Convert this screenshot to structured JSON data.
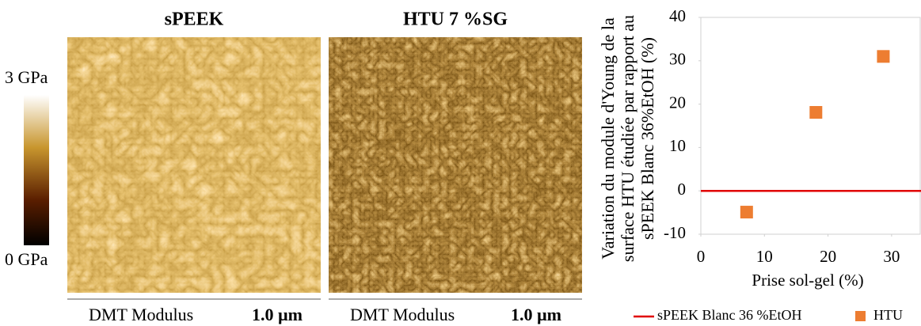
{
  "panels": [
    {
      "title": "sPEEK",
      "caption": "DMT Modulus",
      "scale": "1.0 µm"
    },
    {
      "title": "HTU 7 %SG",
      "caption": "DMT Modulus",
      "scale": "1.0 µm"
    }
  ],
  "colorbar": {
    "top": "3 GPa",
    "bottom": "0 GPa"
  },
  "chart_data": {
    "type": "scatter",
    "y_label": [
      "Variation du module d'Young de la",
      "surface HTU étudiée par rapport au",
      "sPEEK Blanc 36%EtOH (%)"
    ],
    "x_label": "Prise sol-gel (%)",
    "xlim": [
      0,
      35
    ],
    "xticks": [
      0,
      10,
      20,
      30
    ],
    "ylim": [
      -10,
      40
    ],
    "yticks": [
      -10,
      0,
      10,
      20,
      30,
      40
    ],
    "reference": {
      "name": "sPEEK Blanc 36 %EtOH",
      "color": "#e00000",
      "value": 0
    },
    "series": [
      {
        "name": "HTU",
        "color": "#ed7d31",
        "x": [
          7.2,
          18.1,
          28.7
        ],
        "values": [
          -4.9,
          18.1,
          31.0
        ]
      }
    ]
  }
}
